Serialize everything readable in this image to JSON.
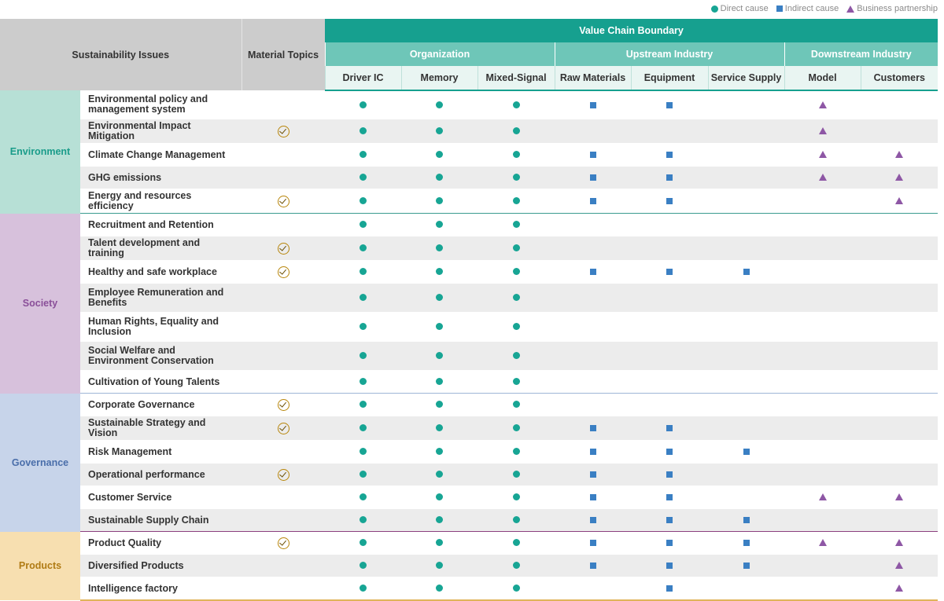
{
  "legend": {
    "direct": "Direct cause",
    "indirect": "Indirect cause",
    "partner": "Business partnership"
  },
  "colors": {
    "direct": "#17a594",
    "indirect": "#3a7fc3",
    "partner": "#8e57a5",
    "header_teal": "#16a08f"
  },
  "header": {
    "issues": "Sustainability Issues",
    "material": "Material Topics",
    "boundary": "Value Chain Boundary",
    "groups": [
      "Organization",
      "Upstream Industry",
      "Downstream Industry"
    ],
    "columns": [
      "Driver IC",
      "Memory",
      "Mixed-Signal",
      "Raw Materials",
      "Equipment",
      "Service Supply",
      "Model",
      "Customers"
    ]
  },
  "categories": [
    {
      "name": "Environment",
      "rows": [
        {
          "issue": "Environmental policy and management system",
          "material": false,
          "marks": [
            "D",
            "D",
            "D",
            "I",
            "I",
            "",
            "P",
            ""
          ]
        },
        {
          "issue": "Environmental Impact Mitigation",
          "material": true,
          "marks": [
            "D",
            "D",
            "D",
            "",
            "",
            "",
            "P",
            ""
          ]
        },
        {
          "issue": "Climate Change Management",
          "material": false,
          "marks": [
            "D",
            "D",
            "D",
            "I",
            "I",
            "",
            "P",
            "P"
          ]
        },
        {
          "issue": "GHG emissions",
          "material": false,
          "marks": [
            "D",
            "D",
            "D",
            "I",
            "I",
            "",
            "P",
            "P"
          ]
        },
        {
          "issue": "Energy and resources efficiency",
          "material": true,
          "marks": [
            "D",
            "D",
            "D",
            "I",
            "I",
            "",
            "",
            "P"
          ]
        }
      ]
    },
    {
      "name": "Society",
      "rows": [
        {
          "issue": "Recruitment and Retention",
          "material": false,
          "marks": [
            "D",
            "D",
            "D",
            "",
            "",
            "",
            "",
            ""
          ]
        },
        {
          "issue": "Talent development and training",
          "material": true,
          "marks": [
            "D",
            "D",
            "D",
            "",
            "",
            "",
            "",
            ""
          ]
        },
        {
          "issue": "Healthy and safe workplace",
          "material": true,
          "marks": [
            "D",
            "D",
            "D",
            "I",
            "I",
            "I",
            "",
            ""
          ]
        },
        {
          "issue": "Employee Remuneration and Benefits",
          "material": false,
          "marks": [
            "D",
            "D",
            "D",
            "",
            "",
            "",
            "",
            ""
          ]
        },
        {
          "issue": "Human Rights, Equality and Inclusion",
          "material": false,
          "marks": [
            "D",
            "D",
            "D",
            "",
            "",
            "",
            "",
            ""
          ]
        },
        {
          "issue": "Social Welfare and Environment Conservation",
          "material": false,
          "marks": [
            "D",
            "D",
            "D",
            "",
            "",
            "",
            "",
            ""
          ]
        },
        {
          "issue": "Cultivation of Young Talents",
          "material": false,
          "marks": [
            "D",
            "D",
            "D",
            "",
            "",
            "",
            "",
            ""
          ]
        }
      ]
    },
    {
      "name": "Governance",
      "rows": [
        {
          "issue": "Corporate Governance",
          "material": true,
          "marks": [
            "D",
            "D",
            "D",
            "",
            "",
            "",
            "",
            ""
          ]
        },
        {
          "issue": "Sustainable Strategy and Vision",
          "material": true,
          "marks": [
            "D",
            "D",
            "D",
            "I",
            "I",
            "",
            "",
            ""
          ]
        },
        {
          "issue": "Risk Management",
          "material": false,
          "marks": [
            "D",
            "D",
            "D",
            "I",
            "I",
            "I",
            "",
            ""
          ]
        },
        {
          "issue": "Operational performance",
          "material": true,
          "marks": [
            "D",
            "D",
            "D",
            "I",
            "I",
            "",
            "",
            ""
          ]
        },
        {
          "issue": "Customer Service",
          "material": false,
          "marks": [
            "D",
            "D",
            "D",
            "I",
            "I",
            "",
            "P",
            "P"
          ]
        },
        {
          "issue": "Sustainable Supply Chain",
          "material": false,
          "marks": [
            "D",
            "D",
            "D",
            "I",
            "I",
            "I",
            "",
            ""
          ]
        }
      ]
    },
    {
      "name": "Products",
      "rows": [
        {
          "issue": "Product Quality",
          "material": true,
          "marks": [
            "D",
            "D",
            "D",
            "I",
            "I",
            "I",
            "P",
            "P"
          ]
        },
        {
          "issue": "Diversified Products",
          "material": false,
          "marks": [
            "D",
            "D",
            "D",
            "I",
            "I",
            "I",
            "",
            "P"
          ]
        },
        {
          "issue": "Intelligence factory",
          "material": false,
          "marks": [
            "D",
            "D",
            "D",
            "",
            "I",
            "",
            "",
            "P"
          ]
        }
      ]
    }
  ]
}
